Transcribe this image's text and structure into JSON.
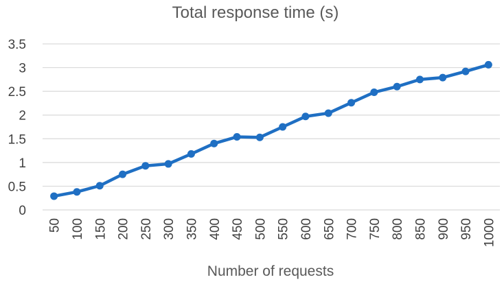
{
  "chart_data": {
    "type": "line",
    "title": "Total response time (s)",
    "xlabel": "Number of requests",
    "ylabel": "",
    "categories": [
      "50",
      "100",
      "150",
      "200",
      "250",
      "300",
      "350",
      "400",
      "450",
      "500",
      "550",
      "600",
      "650",
      "700",
      "750",
      "800",
      "850",
      "900",
      "950",
      "1000"
    ],
    "series": [
      {
        "values": [
          0.29,
          0.38,
          0.51,
          0.75,
          0.93,
          0.97,
          1.18,
          1.4,
          1.54,
          1.53,
          1.75,
          1.97,
          2.04,
          2.26,
          2.48,
          2.6,
          2.75,
          2.79,
          2.92,
          3.06
        ],
        "color": "#1f6fc3",
        "marker": "circle"
      }
    ],
    "ylim": [
      0,
      3.5
    ],
    "yticks": [
      "0",
      "0.5",
      "1",
      "1.5",
      "2",
      "2.5",
      "3",
      "3.5"
    ],
    "grid": "horizontal",
    "legend": "none"
  }
}
